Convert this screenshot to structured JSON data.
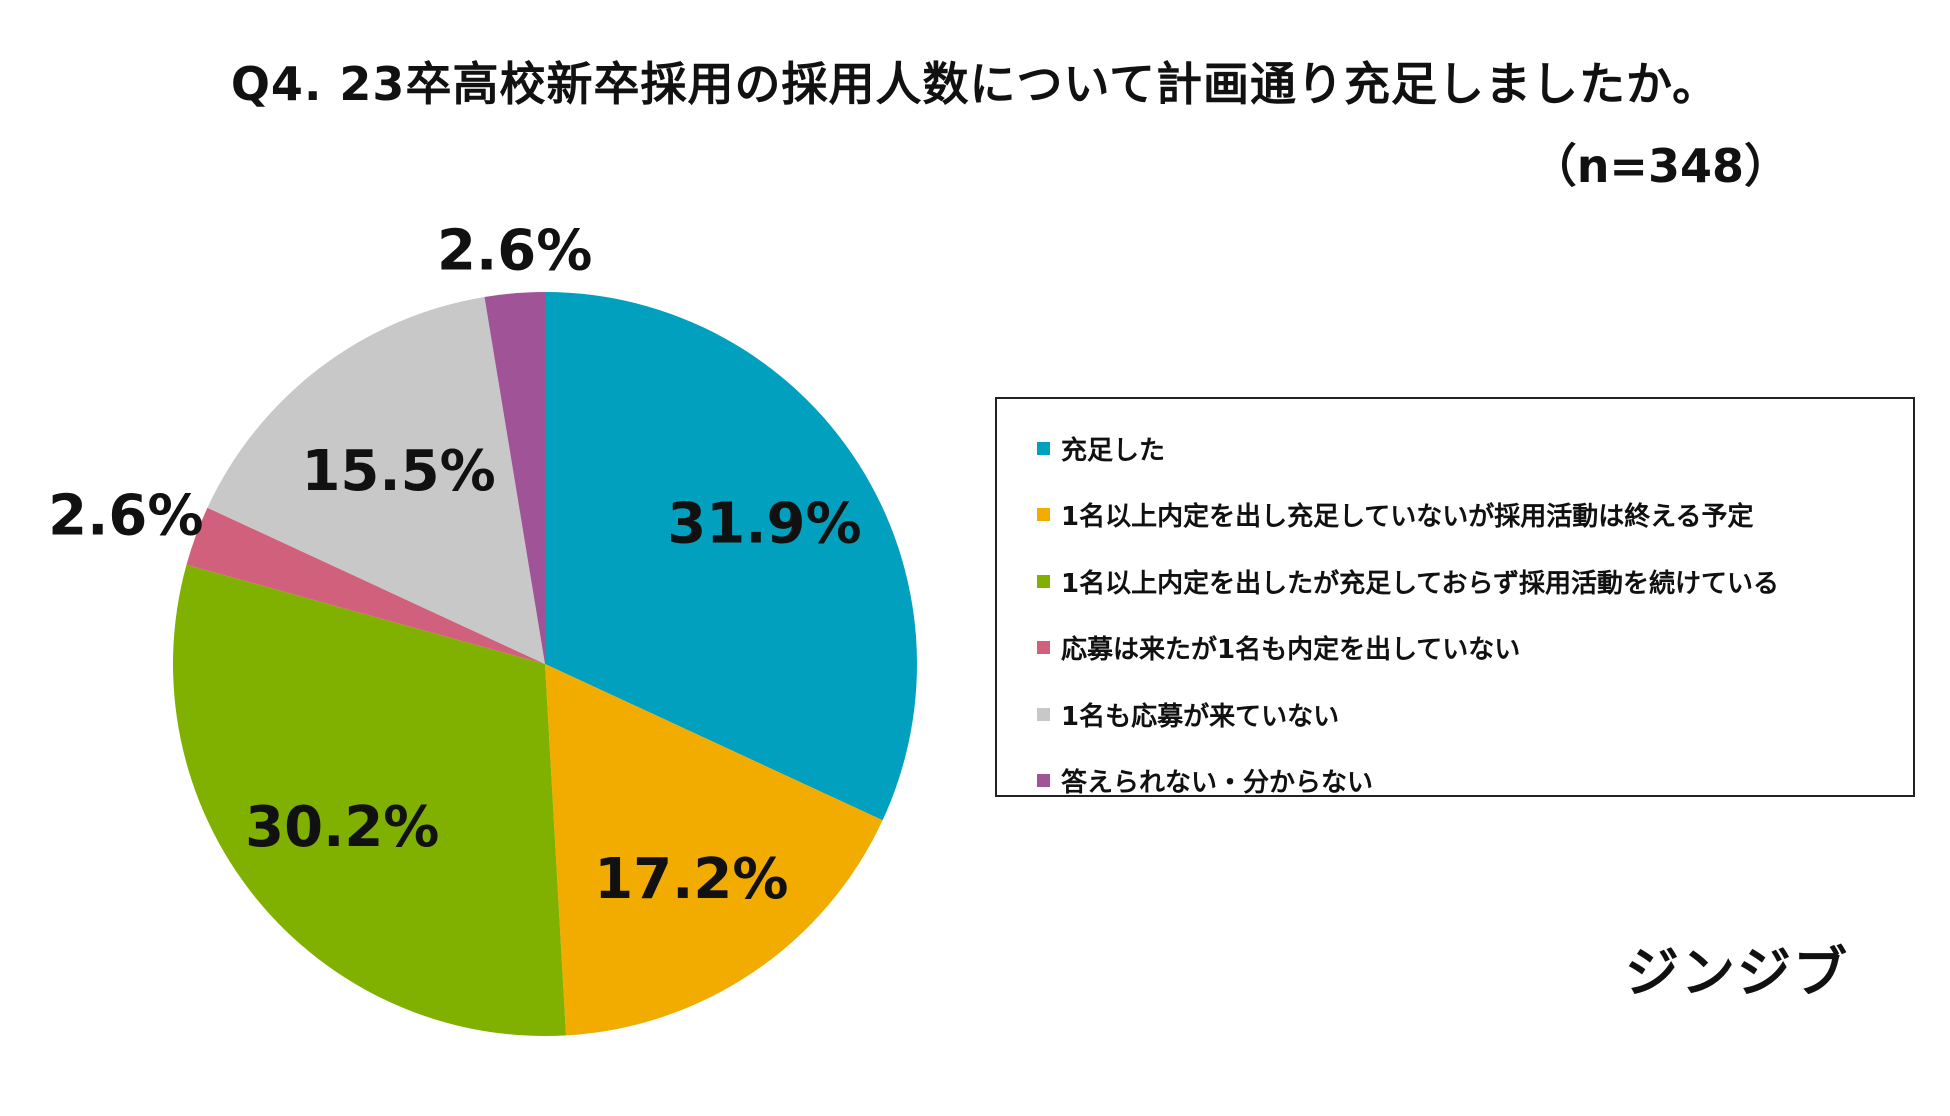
{
  "header": {
    "title": "Q4. 23卒高校新卒採用の採用人数について計画通り充足しましたか。",
    "sample": "（n=348）"
  },
  "brand": "ジンジブ",
  "chart_data": {
    "type": "pie",
    "title": "Q4. 23卒高校新卒採用の採用人数について計画通り充足しましたか。",
    "subtitle": "（n=348）",
    "start_angle_deg": 0,
    "direction": "clockwise",
    "legend_position": "right",
    "slices": [
      {
        "label": "充足した",
        "value": 31.9,
        "display": "31.9%",
        "color": "#00A0BE"
      },
      {
        "label": "1名以上内定を出し充足していないが採用活動は終える予定",
        "value": 17.2,
        "display": "17.2%",
        "color": "#F2AC00"
      },
      {
        "label": "1名以上内定を出したが充足しておらず採用活動を続けている",
        "value": 30.2,
        "display": "30.2%",
        "color": "#80B000"
      },
      {
        "label": "応募は来たが1名も内定を出していない",
        "value": 2.6,
        "display": "2.6%",
        "color": "#D0607C"
      },
      {
        "label": "1名も応募が来ていない",
        "value": 15.5,
        "display": "15.5%",
        "color": "#C8C8C8"
      },
      {
        "label": "答えられない・分からない",
        "value": 2.6,
        "display": "2.6%",
        "color": "#A05497"
      }
    ]
  }
}
